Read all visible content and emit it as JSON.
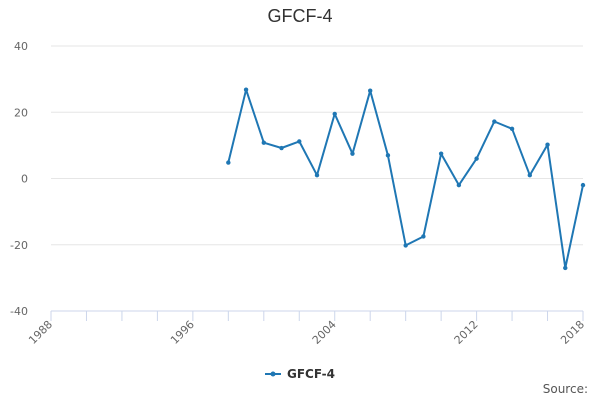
{
  "chart_data": {
    "type": "line",
    "title": "GFCF-4",
    "xlabel": "",
    "ylabel": "",
    "xlim": [
      1988,
      2018
    ],
    "ylim": [
      -40,
      40
    ],
    "x_ticks": [
      1988,
      1996,
      2004,
      2012,
      2018
    ],
    "y_ticks": [
      40,
      20,
      0,
      -20,
      -40
    ],
    "grid": true,
    "legend": "bottom-center",
    "series": [
      {
        "name": "GFCF-4",
        "color": "#1f77b4",
        "x": [
          1998,
          1999,
          2000,
          2001,
          2002,
          2003,
          2004,
          2005,
          2006,
          2007,
          2008,
          2009,
          2010,
          2011,
          2012,
          2013,
          2014,
          2015,
          2016,
          2017,
          2018
        ],
        "y": [
          4.8,
          26.8,
          10.8,
          9.2,
          11.2,
          1.0,
          19.5,
          7.5,
          26.5,
          7.0,
          -20.2,
          -17.5,
          7.5,
          -2.0,
          6.0,
          17.2,
          15.0,
          1.0,
          10.2,
          -27.0,
          -2.0
        ]
      }
    ]
  },
  "footer": {
    "source_label": "Source:"
  }
}
